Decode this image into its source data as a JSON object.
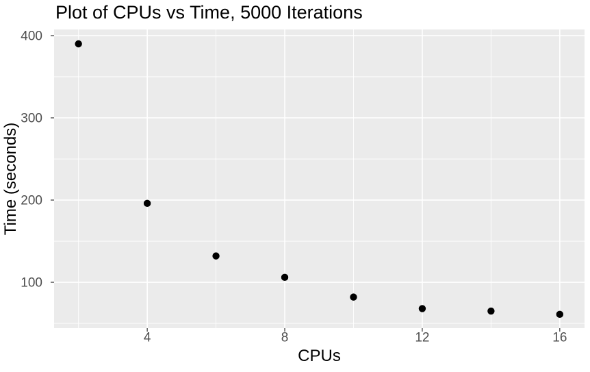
{
  "chart_data": {
    "type": "scatter",
    "title": "Plot of CPUs vs Time, 5000 Iterations",
    "xlabel": "CPUs",
    "ylabel": "Time (seconds)",
    "x": [
      2,
      4,
      6,
      8,
      10,
      12,
      14,
      16
    ],
    "y": [
      390,
      196,
      132,
      106,
      82,
      68,
      65,
      61
    ],
    "xlim": [
      1.29,
      16.72
    ],
    "ylim": [
      44.2,
      407.5
    ],
    "x_ticks": [
      4,
      8,
      12,
      16
    ],
    "y_ticks": [
      100,
      200,
      300,
      400
    ],
    "x_minor_ticks": [
      2,
      6,
      10,
      14
    ],
    "y_minor_ticks": [
      50,
      150,
      250,
      350
    ],
    "grid": true,
    "legend": "none",
    "style": {
      "outer_bg": "#FFFFFF",
      "panel_bg": "#EBEBEB",
      "grid_color": "#FFFFFF",
      "point_color": "#000000",
      "tick_label_color": "#4D4D4D",
      "tick_mark_color": "#333333",
      "axis_title_color": "#000000",
      "title_color": "#000000"
    }
  }
}
